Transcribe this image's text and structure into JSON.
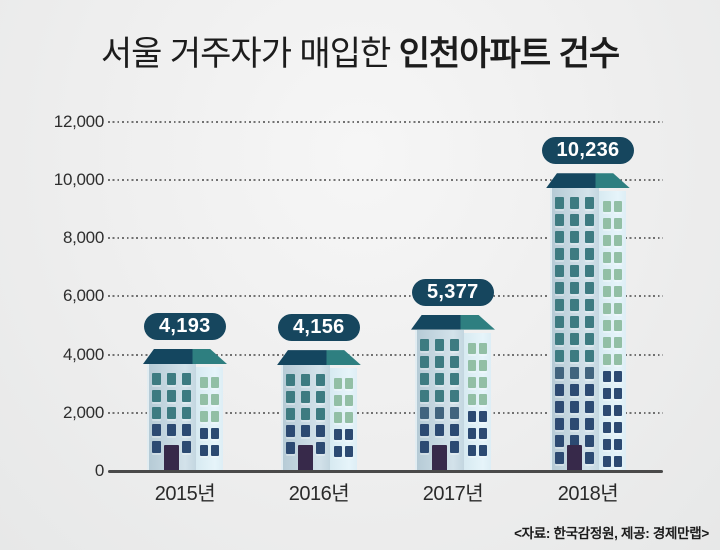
{
  "title": {
    "regular": "서울 거주자가 매입한 ",
    "bold": "인천아파트 건수"
  },
  "source": "<자료: 한국감정원, 제공: 경제만랩>",
  "chart_data": {
    "type": "bar",
    "title": "서울 거주자가 매입한 인천아파트 건수",
    "categories": [
      "2015년",
      "2016년",
      "2017년",
      "2018년"
    ],
    "values": [
      4193,
      4156,
      5377,
      10236
    ],
    "value_labels": [
      "4,193",
      "4,156",
      "5,377",
      "10,236"
    ],
    "xlabel": "",
    "ylabel": "",
    "ylim": [
      0,
      12000
    ],
    "yticks": [
      0,
      2000,
      4000,
      6000,
      8000,
      10000,
      12000
    ],
    "ytick_labels": [
      "0",
      "2,000",
      "4,000",
      "6,000",
      "8,000",
      "10,000",
      "12,000"
    ],
    "grid": "horizontal-dotted",
    "legend": "none",
    "bar_style": "apartment-building-illustration",
    "colors": {
      "roof_left": "#14465f",
      "roof_right": "#2e7f80",
      "tower_left_body": "#c9dae3",
      "tower_right_body": "#dfeff6",
      "window_teal": "#3d7b81",
      "window_sage": "#92bfa5",
      "window_slate": "#41647e",
      "window_navy": "#2c4a72",
      "door": "#37294a",
      "value_pill_bg": "#16465e",
      "value_pill_text": "#ffffff",
      "axis": "#4a4a4a",
      "background": "#eeeeee"
    }
  }
}
